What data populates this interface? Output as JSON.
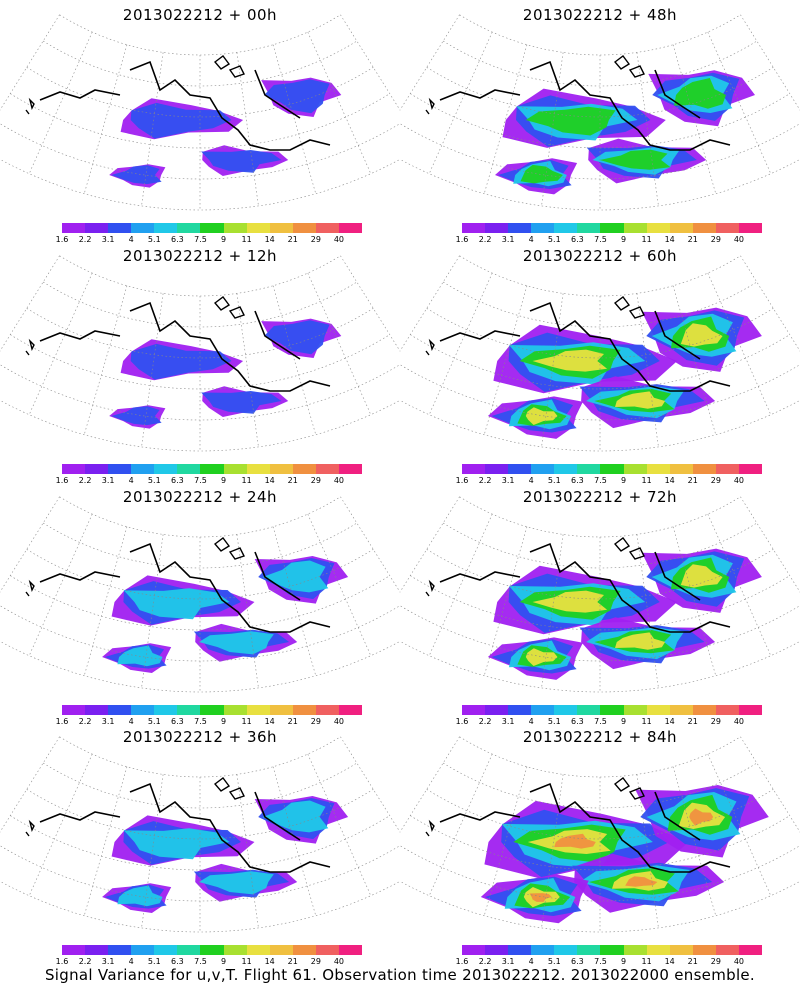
{
  "panels": [
    {
      "title": "2013022212 + 00h",
      "intensity": 1
    },
    {
      "title": "2013022212 + 48h",
      "intensity": 3
    },
    {
      "title": "2013022212 + 12h",
      "intensity": 1
    },
    {
      "title": "2013022212 + 60h",
      "intensity": 4
    },
    {
      "title": "2013022212 + 24h",
      "intensity": 2
    },
    {
      "title": "2013022212 + 72h",
      "intensity": 4
    },
    {
      "title": "2013022212 + 36h",
      "intensity": 2
    },
    {
      "title": "2013022212 + 84h",
      "intensity": 5
    }
  ],
  "colorbar": {
    "labels": [
      "1.6",
      "2.2",
      "3.1",
      "4",
      "5.1",
      "6.3",
      "7.5",
      "9",
      "11",
      "14",
      "21",
      "29",
      "40"
    ],
    "colors": [
      "#a020f0",
      "#7a20f0",
      "#3050f0",
      "#20a0f0",
      "#20c8e8",
      "#20d8a0",
      "#20d020",
      "#a8e030",
      "#e8e040",
      "#f0c040",
      "#f09040",
      "#f06060",
      "#f02080"
    ]
  },
  "footer": "Signal Variance for u,v,T. Flight 61. Observation time 2013022212. 2013022000 ensemble."
}
